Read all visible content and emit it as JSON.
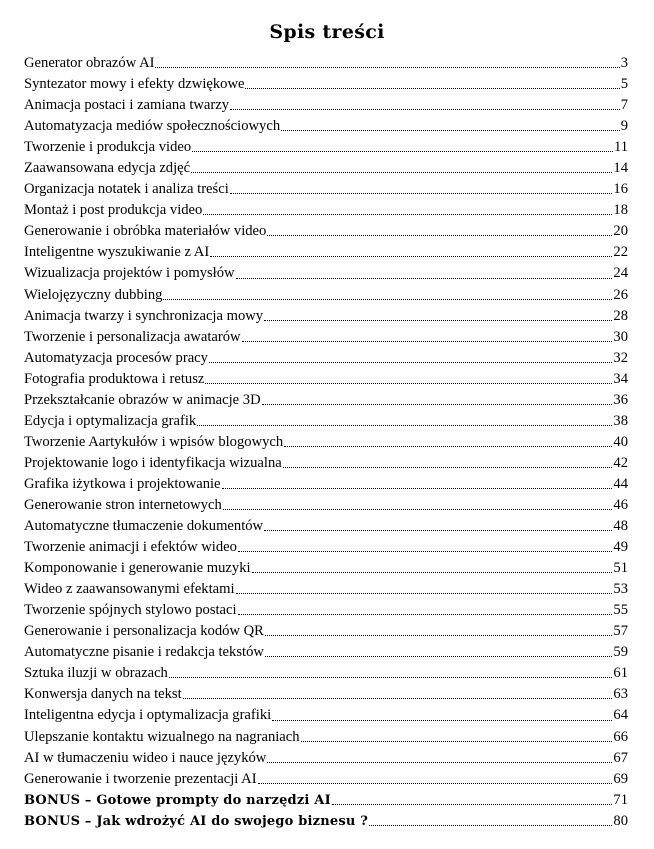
{
  "document": {
    "title": "Spis treści"
  },
  "toc": {
    "entries": [
      {
        "label": "Generator obrazów AI",
        "page": "3"
      },
      {
        "label": "Syntezator mowy i efekty dzwiękowe",
        "page": "5"
      },
      {
        "label": "Animacja postaci i zamiana twarzy",
        "page": "7"
      },
      {
        "label": "Automatyzacja mediów społecznościowych",
        "page": "9"
      },
      {
        "label": "Tworzenie i produkcja video",
        "page": "11"
      },
      {
        "label": "Zaawansowana edycja zdjęć",
        "page": "14"
      },
      {
        "label": "Organizacja notatek i analiza treści",
        "page": "16"
      },
      {
        "label": "Montaż i post produkcja video",
        "page": "18"
      },
      {
        "label": "Generowanie i obróbka materiałów video",
        "page": "20"
      },
      {
        "label": "Inteligentne wyszukiwanie z AI",
        "page": "22"
      },
      {
        "label": "Wizualizacja projektów i pomysłów",
        "page": "24"
      },
      {
        "label": "Wielojęzyczny dubbing",
        "page": "26"
      },
      {
        "label": "Animacja twarzy i synchronizacja mowy",
        "page": "28"
      },
      {
        "label": "Tworzenie i personalizacja awatarów",
        "page": "30"
      },
      {
        "label": "Automatyzacja procesów pracy",
        "page": "32"
      },
      {
        "label": "Fotografia produktowa i retusz",
        "page": "34"
      },
      {
        "label": "Przekształcanie obrazów w animacje 3D",
        "page": "36"
      },
      {
        "label": "Edycja i optymalizacja grafik",
        "page": "38"
      },
      {
        "label": "Tworzenie Aartykułów i wpisów blogowych",
        "page": "40"
      },
      {
        "label": "Projektowanie logo i identyfikacja wizualna",
        "page": "42"
      },
      {
        "label": "Grafika iżytkowa i projektowanie",
        "page": "44"
      },
      {
        "label": "Generowanie stron internetowych",
        "page": "46"
      },
      {
        "label": "Automatyczne tłumaczenie dokumentów",
        "page": "48"
      },
      {
        "label": "Tworzenie animacji i efektów wideo",
        "page": "49"
      },
      {
        "label": "Komponowanie i generowanie muzyki",
        "page": "51"
      },
      {
        "label": "Wideo z zaawansowanymi efektami",
        "page": "53"
      },
      {
        "label": "Tworzenie spójnych stylowo postaci",
        "page": "55"
      },
      {
        "label": "Generowanie i personalizacja kodów QR",
        "page": "57"
      },
      {
        "label": "Automatyczne pisanie i redakcja tekstów",
        "page": "59"
      },
      {
        "label": "Sztuka iluzji w obrazach",
        "page": "61"
      },
      {
        "label": "Konwersja danych na tekst",
        "page": "63"
      },
      {
        "label": "Inteligentna edycja i optymalizacja grafiki",
        "page": "64"
      },
      {
        "label": "Ulepszanie kontaktu wizualnego na nagraniach",
        "page": "66"
      },
      {
        "label": "AI w tłumaczeniu wideo i nauce języków",
        "page": "67"
      },
      {
        "label": "Generowanie i tworzenie prezentacji AI",
        "page": "69"
      },
      {
        "label": "BONUS – Gotowe prompty do narzędzi AI",
        "page": "71",
        "bonus": true
      },
      {
        "label": "BONUS – Jak wdrożyć AI do swojego biznesu ?",
        "page": "80",
        "bonus": true
      }
    ]
  }
}
